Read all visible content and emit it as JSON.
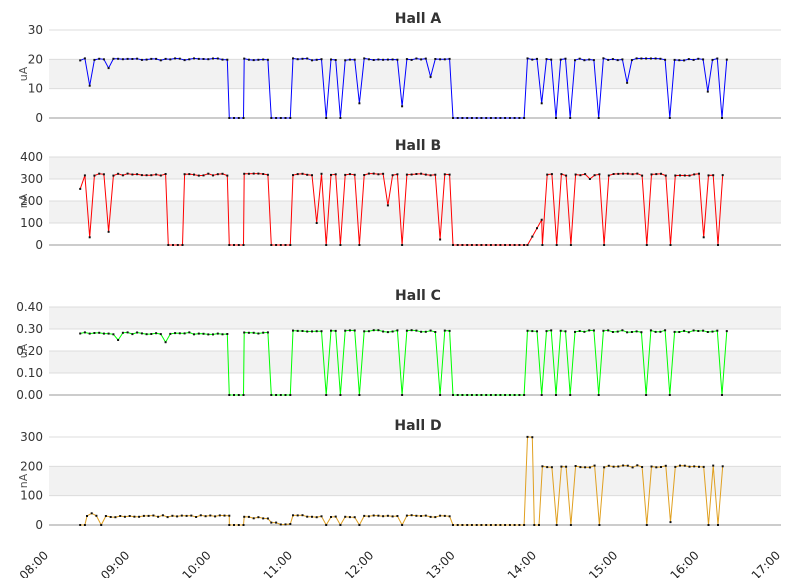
{
  "chart_data": [
    {
      "type": "line",
      "title": "Hall A",
      "ylabel": "uA",
      "ylim": [
        0,
        30
      ],
      "yticks": [
        "0",
        "10",
        "20",
        "30"
      ],
      "color": "#0000ff",
      "grid": "horizontal bands",
      "x_start": "08:23",
      "x_end": "16:20",
      "segments": [
        {
          "from": "08:23",
          "to": "10:13",
          "level": 20,
          "dips": [
            {
              "at": "08:30",
              "v": 11
            },
            {
              "at": "08:45",
              "v": 17
            }
          ]
        },
        {
          "from": "10:13",
          "to": "10:24",
          "level": 0
        },
        {
          "from": "10:24",
          "to": "10:43",
          "level": 20
        },
        {
          "from": "10:44",
          "to": "11:00",
          "level": 0
        },
        {
          "from": "11:00",
          "to": "12:58",
          "level": 20,
          "dips": [
            {
              "at": "11:25",
              "v": 0
            },
            {
              "at": "11:35",
              "v": 0
            },
            {
              "at": "11:48",
              "v": 5
            },
            {
              "at": "12:22",
              "v": 4
            },
            {
              "at": "12:42",
              "v": 14
            }
          ]
        },
        {
          "from": "12:58",
          "to": "13:53",
          "level": 0
        },
        {
          "from": "13:53",
          "to": "16:20",
          "level": 20,
          "dips": [
            {
              "at": "14:05",
              "v": 5
            },
            {
              "at": "14:13",
              "v": 0
            },
            {
              "at": "14:25",
              "v": 0
            },
            {
              "at": "14:45",
              "v": 0
            },
            {
              "at": "15:05",
              "v": 12
            },
            {
              "at": "15:38",
              "v": 0
            },
            {
              "at": "16:05",
              "v": 9
            },
            {
              "at": "16:15",
              "v": 0
            }
          ]
        }
      ]
    },
    {
      "type": "line",
      "title": "Hall B",
      "ylabel": "nA",
      "ylim": [
        0,
        400
      ],
      "yticks": [
        "0",
        "100",
        "200",
        "300",
        "400"
      ],
      "color": "#ff0000",
      "grid": "horizontal bands",
      "x_start": "08:23",
      "x_end": "16:20",
      "segments": [
        {
          "from": "08:23",
          "to": "09:28",
          "level": 320,
          "dips": [
            {
              "at": "08:23",
              "v": 255
            },
            {
              "at": "08:30",
              "v": 35
            },
            {
              "at": "08:45",
              "v": 60
            }
          ]
        },
        {
          "from": "09:28",
          "to": "09:40",
          "level": 0
        },
        {
          "from": "09:40",
          "to": "10:13",
          "level": 320
        },
        {
          "from": "10:13",
          "to": "10:24",
          "level": 0
        },
        {
          "from": "10:24",
          "to": "10:43",
          "level": 320
        },
        {
          "from": "10:44",
          "to": "11:00",
          "level": 0
        },
        {
          "from": "11:00",
          "to": "12:58",
          "level": 320,
          "dips": [
            {
              "at": "11:17",
              "v": 100
            },
            {
              "at": "11:25",
              "v": 0
            },
            {
              "at": "11:35",
              "v": 0
            },
            {
              "at": "11:48",
              "v": 0
            },
            {
              "at": "12:10",
              "v": 180
            },
            {
              "at": "12:22",
              "v": 0
            },
            {
              "at": "12:47",
              "v": 25
            }
          ]
        },
        {
          "from": "12:58",
          "to": "13:53",
          "level": 0
        },
        {
          "from": "13:53",
          "to": "14:04",
          "level": 120,
          "ramp": true
        },
        {
          "from": "14:04",
          "to": "16:20",
          "level": 320,
          "dips": [
            {
              "at": "14:05",
              "v": 0
            },
            {
              "at": "14:13",
              "v": 0
            },
            {
              "at": "14:25",
              "v": 0
            },
            {
              "at": "14:40",
              "v": 300
            },
            {
              "at": "14:50",
              "v": 0
            },
            {
              "at": "15:20",
              "v": 0
            },
            {
              "at": "15:38",
              "v": 0
            },
            {
              "at": "16:03",
              "v": 35
            },
            {
              "at": "16:15",
              "v": 0
            }
          ]
        }
      ]
    },
    {
      "type": "line",
      "title": "Hall C",
      "ylabel": "uA",
      "ylim": [
        0,
        0.4
      ],
      "yticks": [
        "0.00",
        "0.10",
        "0.20",
        "0.30",
        "0.40"
      ],
      "color": "#00ff00",
      "grid": "horizontal bands",
      "x_start": "08:23",
      "x_end": "16:20",
      "segments": [
        {
          "from": "08:23",
          "to": "10:13",
          "level": 0.28,
          "dips": [
            {
              "at": "08:50",
              "v": 0.25
            },
            {
              "at": "09:25",
              "v": 0.24
            }
          ]
        },
        {
          "from": "10:13",
          "to": "10:24",
          "level": 0
        },
        {
          "from": "10:24",
          "to": "10:43",
          "level": 0.28
        },
        {
          "from": "10:44",
          "to": "11:00",
          "level": 0
        },
        {
          "from": "11:00",
          "to": "12:58",
          "level": 0.29,
          "dips": [
            {
              "at": "11:25",
              "v": 0
            },
            {
              "at": "11:35",
              "v": 0
            },
            {
              "at": "11:48",
              "v": 0
            },
            {
              "at": "12:22",
              "v": 0
            },
            {
              "at": "12:47",
              "v": 0
            }
          ]
        },
        {
          "from": "12:58",
          "to": "13:53",
          "level": 0
        },
        {
          "from": "13:53",
          "to": "16:20",
          "level": 0.29,
          "dips": [
            {
              "at": "14:05",
              "v": 0
            },
            {
              "at": "14:13",
              "v": 0
            },
            {
              "at": "14:25",
              "v": 0
            },
            {
              "at": "14:45",
              "v": 0
            },
            {
              "at": "15:20",
              "v": 0
            },
            {
              "at": "15:38",
              "v": 0
            },
            {
              "at": "16:15",
              "v": 0
            }
          ]
        }
      ]
    },
    {
      "type": "line",
      "title": "Hall D",
      "ylabel": "nA",
      "ylim": [
        0,
        300
      ],
      "yticks": [
        "0",
        "100",
        "200",
        "300"
      ],
      "color": "#e0a020",
      "grid": "horizontal bands",
      "x_start": "08:23",
      "x_end": "16:20",
      "segments": [
        {
          "from": "08:23",
          "to": "08:28",
          "level": 0
        },
        {
          "from": "08:28",
          "to": "10:13",
          "level": 30,
          "dips": [
            {
              "at": "08:30",
              "v": 40
            },
            {
              "at": "08:40",
              "v": 0
            }
          ]
        },
        {
          "from": "10:13",
          "to": "10:24",
          "level": 0
        },
        {
          "from": "10:24",
          "to": "10:43",
          "level": 25
        },
        {
          "from": "10:44",
          "to": "11:00",
          "level": 5
        },
        {
          "from": "11:00",
          "to": "12:58",
          "level": 30,
          "dips": [
            {
              "at": "11:25",
              "v": 0
            },
            {
              "at": "11:35",
              "v": 0
            },
            {
              "at": "11:48",
              "v": 0
            },
            {
              "at": "12:22",
              "v": 0
            }
          ]
        },
        {
          "from": "12:58",
          "to": "13:53",
          "level": 0
        },
        {
          "from": "13:53",
          "to": "13:58",
          "level": 300
        },
        {
          "from": "13:58",
          "to": "14:04",
          "level": 0
        },
        {
          "from": "14:04",
          "to": "16:20",
          "level": 200,
          "dips": [
            {
              "at": "14:13",
              "v": 0
            },
            {
              "at": "14:25",
              "v": 0
            },
            {
              "at": "14:45",
              "v": 0
            },
            {
              "at": "15:20",
              "v": 0
            },
            {
              "at": "15:38",
              "v": 10
            },
            {
              "at": "16:05",
              "v": 0
            },
            {
              "at": "16:15",
              "v": 0
            }
          ]
        }
      ]
    }
  ],
  "x_axis": {
    "range": [
      "08:00",
      "17:00"
    ],
    "tick_labels": [
      "08:00",
      "09:00",
      "10:00",
      "11:00",
      "12:00",
      "13:00",
      "14:00",
      "15:00",
      "16:00",
      "17:00"
    ]
  }
}
